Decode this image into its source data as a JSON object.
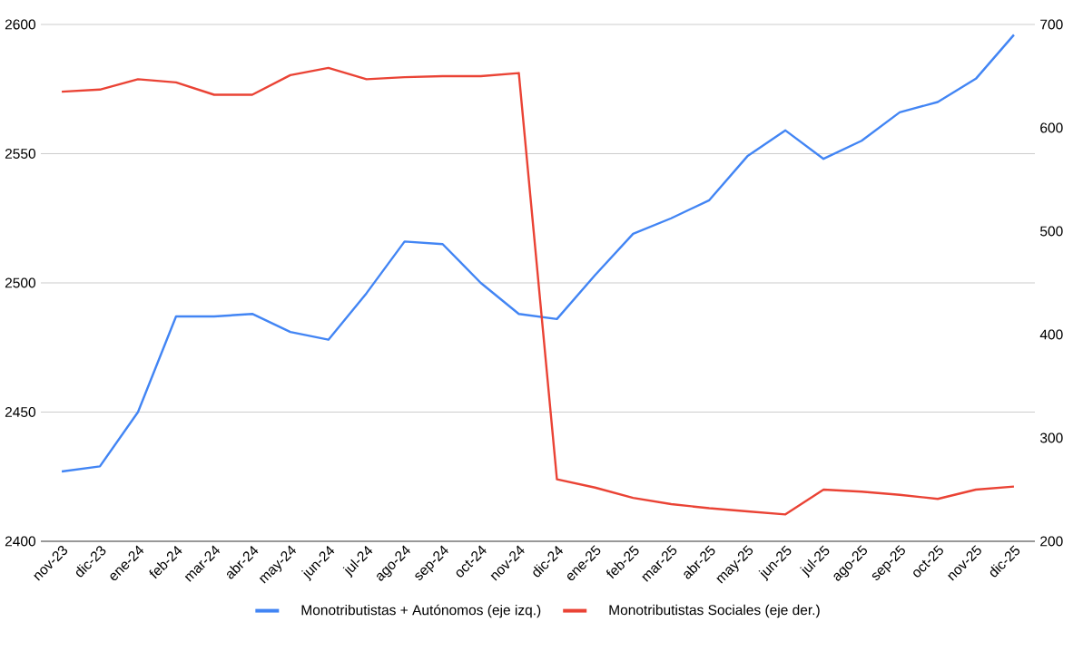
{
  "chart_data": {
    "type": "line",
    "categories": [
      "nov-23",
      "dic-23",
      "ene-24",
      "feb-24",
      "mar-24",
      "abr-24",
      "may-24",
      "jun-24",
      "jul-24",
      "ago-24",
      "sep-24",
      "oct-24",
      "nov-24",
      "dic-24",
      "ene-25",
      "feb-25",
      "mar-25",
      "abr-25",
      "may-25",
      "jun-25",
      "jul-25",
      "ago-25",
      "sep-25",
      "oct-25",
      "nov-25",
      "dic-25"
    ],
    "series": [
      {
        "name": "Monotributistas + Autónomos (eje izq.)",
        "color": "#4285f4",
        "values": [
          2427,
          2429,
          2450,
          2487,
          2487,
          2488,
          2481,
          2478,
          2496,
          2516,
          2515,
          2500,
          2488,
          2486,
          2503,
          2519,
          2525,
          2532,
          2549,
          2559,
          2548,
          2555,
          2566,
          2570,
          2579,
          2596
        ]
      },
      {
        "name": "Monotributistas Sociales (eje der.)",
        "color": "#ea4335",
        "axis": "y2",
        "values": [
          635,
          637,
          647,
          644,
          632,
          632,
          651,
          658,
          647,
          649,
          650,
          650,
          653,
          260,
          252,
          242,
          236,
          232,
          229,
          226,
          250,
          248,
          245,
          241,
          250,
          253
        ]
      }
    ],
    "ylim": [
      2400,
      2600
    ],
    "yticks": [
      2400,
      2450,
      2500,
      2550,
      2600
    ],
    "y2lim": [
      200,
      700
    ],
    "y2ticks": [
      200,
      300,
      400,
      500,
      600,
      700
    ],
    "grid": "y",
    "legend": "bottom"
  }
}
